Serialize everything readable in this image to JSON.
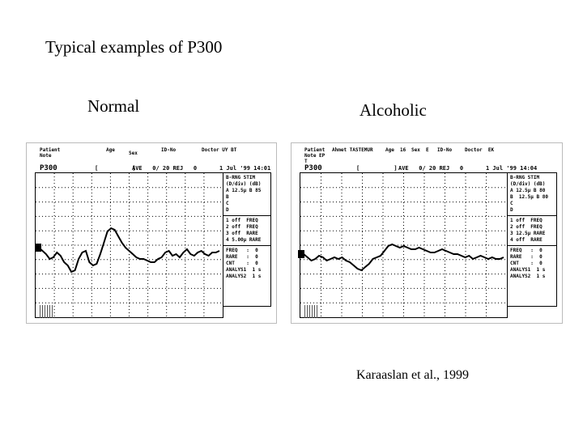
{
  "title": "Typical examples of P300",
  "label_normal": "Normal",
  "label_alcoholic": "Alcoholic",
  "citation": "Karaaslan et al., 1999",
  "screen_normal": {
    "header_patient": "Patient\nNote",
    "header_age": "Age",
    "header_sex": "Sex",
    "header_id": "ID-No",
    "header_doctor": "Doctor UY BT",
    "p300": "P300",
    "bracket": "[          ]",
    "status": "AVE   0/ 20 REJ   0",
    "date": "1 Jul '99 14:01",
    "stim": [
      "B-RNG STIM",
      "(D/div) (dB)",
      "A 12.5µ B 85",
      "B",
      "C",
      "D"
    ],
    "freq": [
      "1 off  FREQ",
      "2 off  FREQ",
      "3 off  RARE",
      "4 5.00µ RARE"
    ],
    "counts": [
      "FREQ   :  0",
      "RARE   :  0",
      "CNT    :  0",
      "ANALYS1  1 s",
      "ANALYS2  1 s"
    ]
  },
  "screen_alcoholic": {
    "header_patient": "Patient\nNote EP\nT",
    "header_name": "Ahmet TASTEMUR",
    "header_age": "Age  16",
    "header_sex": "Sex  E",
    "header_id": "ID-No",
    "header_doctor": "Doctor  EK",
    "p300": "P300",
    "bracket": "[          ]",
    "status": "AVE   0/ 20 REJ   0",
    "date": "1 Jul '99 14:04",
    "stim": [
      "B-RNG STIM",
      "(D/div) (dB)",
      "A 12.5µ B 80",
      "B  12.5µ B 80",
      "C",
      "D"
    ],
    "freq": [
      "1 off  FREQ",
      "2 off  FREQ",
      "3 12.5µ RARE",
      "4 off  RARE"
    ],
    "counts": [
      "FREQ   :  0",
      "RARE   :  0",
      "CNT    :  0",
      "ANALYS1  1 s",
      "ANALYS2  1 s"
    ]
  },
  "waveform_normal": [
    0,
    -4,
    -8,
    -14,
    -12,
    -6,
    -10,
    -18,
    -22,
    -30,
    -28,
    -14,
    -6,
    -4,
    -18,
    -22,
    -20,
    -8,
    6,
    20,
    24,
    22,
    14,
    6,
    0,
    -4,
    -8,
    -12,
    -14,
    -14,
    -16,
    -18,
    -18,
    -14,
    -12,
    -6,
    -4,
    -10,
    -8,
    -12,
    -6,
    -2,
    -8,
    -10,
    -6,
    -4,
    -8,
    -10,
    -6,
    -6,
    -4
  ],
  "waveform_alcoholic": [
    0,
    -4,
    -8,
    -6,
    -2,
    -4,
    -8,
    -6,
    -4,
    -6,
    -4,
    -8,
    -10,
    -14,
    -18,
    -20,
    -16,
    -12,
    -6,
    -4,
    -2,
    4,
    10,
    12,
    10,
    8,
    10,
    8,
    6,
    6,
    8,
    6,
    4,
    2,
    2,
    4,
    6,
    4,
    2,
    0,
    0,
    -2,
    -4,
    -2,
    -6,
    -4,
    -2,
    -4,
    -6,
    -4,
    -6,
    -6,
    -4
  ]
}
